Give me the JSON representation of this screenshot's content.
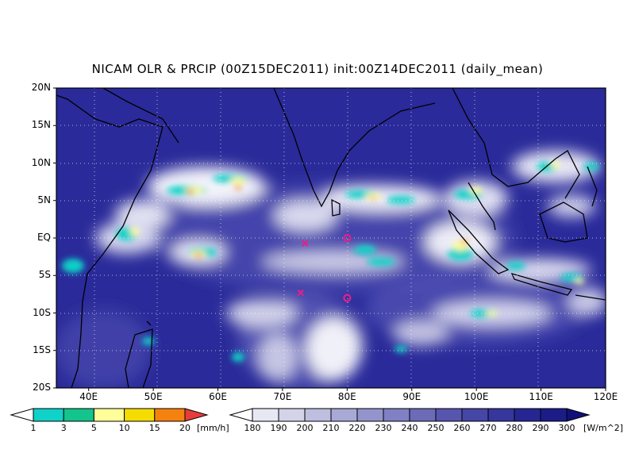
{
  "title": "NICAM OLR & PRCIP (00Z15DEC2011) init:00Z14DEC2011 (daily_mean)",
  "map": {
    "lat_labels": [
      "20N",
      "15N",
      "10N",
      "5N",
      "EQ",
      "5S",
      "10S",
      "15S",
      "20S"
    ],
    "lat_values": [
      20,
      15,
      10,
      5,
      0,
      -5,
      -10,
      -15,
      -20
    ],
    "lon_labels": [
      "40E",
      "50E",
      "60E",
      "70E",
      "80E",
      "90E",
      "100E",
      "110E",
      "120E"
    ],
    "lon_values": [
      40,
      50,
      60,
      70,
      80,
      90,
      100,
      110,
      120
    ],
    "lon_range": [
      35,
      120
    ],
    "lat_range": [
      -20,
      20
    ],
    "gridlines": true,
    "markers": [
      {
        "type": "x",
        "lon": 73.5,
        "lat": -0.7,
        "color": "#e0218a"
      },
      {
        "type": "x",
        "lon": 72.8,
        "lat": -7.3,
        "color": "#e0218a"
      },
      {
        "type": "o",
        "lon": 80.0,
        "lat": 0.0,
        "color": "#e0218a"
      },
      {
        "type": "o",
        "lon": 80.0,
        "lat": -8.0,
        "color": "#e0218a"
      }
    ]
  },
  "precip_colorbar": {
    "labels": [
      "1",
      "3",
      "5",
      "10",
      "15",
      "20"
    ],
    "colors": [
      "#ffffff",
      "#10d2c8",
      "#13c48c",
      "#ffff9a",
      "#f5dd04",
      "#f5820e",
      "#e83b3b"
    ],
    "unit": "[mm/h]"
  },
  "olr_colorbar": {
    "labels": [
      "180",
      "190",
      "200",
      "210",
      "220",
      "230",
      "240",
      "250",
      "260",
      "270",
      "280",
      "290",
      "300"
    ],
    "colors": [
      "#ffffff",
      "#e8e8f4",
      "#d3d3ea",
      "#bebee0",
      "#a9a9d6",
      "#9494cc",
      "#8080c4",
      "#6b6bb8",
      "#5656ae",
      "#4646a6",
      "#36369c",
      "#262692",
      "#1c1c88",
      "#10107a"
    ],
    "unit": "[W/m^2]"
  }
}
